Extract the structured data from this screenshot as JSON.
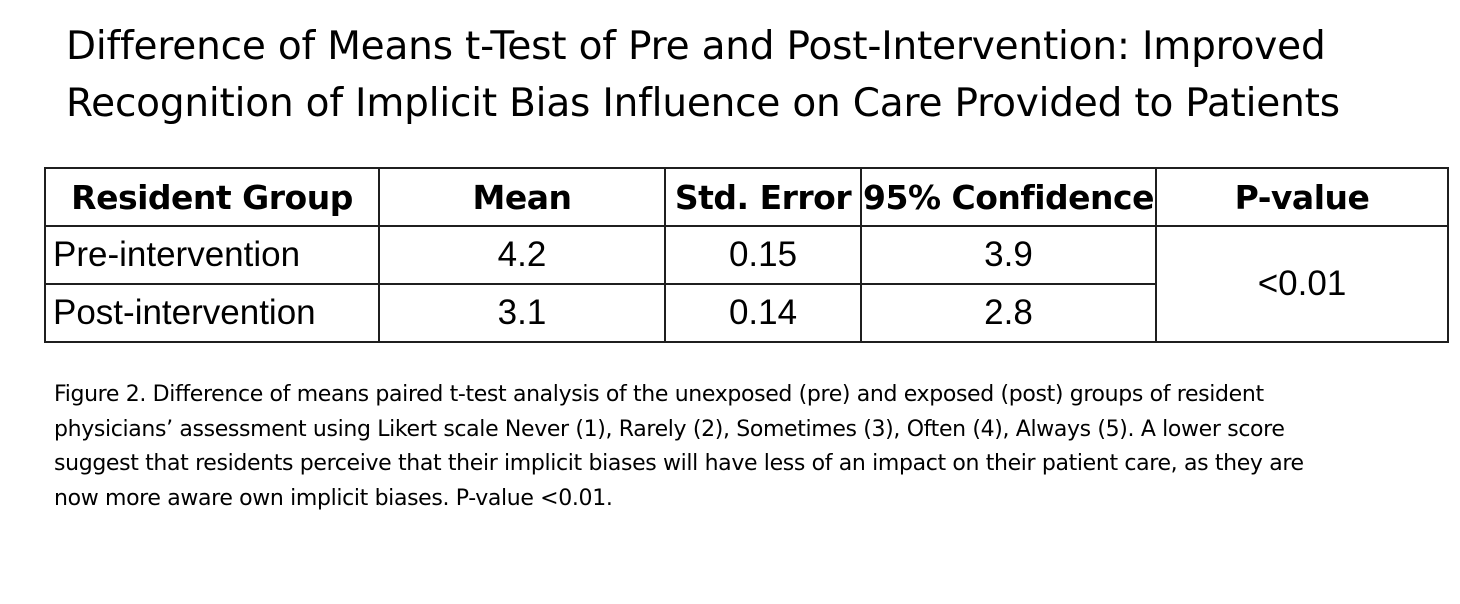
{
  "title": {
    "line1": "Difference of Means t-Test of Pre and Post-Intervention: Improved",
    "line2": "Recognition of Implicit Bias Influence on Care Provided to Patients"
  },
  "table": {
    "headers": [
      "Resident Group",
      "Mean",
      "Std. Error",
      "95% Confidence",
      "P-value"
    ],
    "rows": [
      {
        "group": "Pre-intervention",
        "mean": "4.2",
        "std_error": "0.15",
        "confidence": "3.9"
      },
      {
        "group": "Post-intervention",
        "mean": "3.1",
        "std_error": "0.14",
        "confidence": "2.8"
      }
    ],
    "p_value": "<0.01"
  },
  "caption": {
    "lines": [
      "Figure 2. Difference of means paired t-test analysis of the unexposed (pre) and exposed (post) groups of resident",
      "physicians’  assessment using Likert scale Never (1), Rarely (2), Sometimes (3), Often (4), Always (5). A lower score",
      "suggest that residents perceive that their implicit biases will have less of an impact on their patient care, as they are",
      "now more aware own implicit biases. P-value <0.01."
    ]
  }
}
